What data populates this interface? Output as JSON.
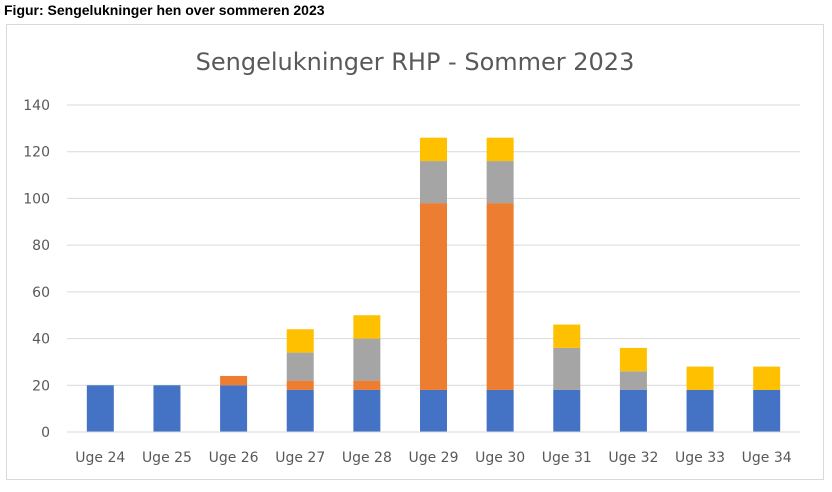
{
  "caption": "Figur: Sengelukninger hen over sommeren 2023",
  "chart_data": {
    "type": "bar",
    "stacked": true,
    "title": "Sengelukninger RHP - Sommer 2023",
    "xlabel": "",
    "ylabel": "",
    "ylim": [
      0,
      140
    ],
    "yticks": [
      0,
      20,
      40,
      60,
      80,
      100,
      120,
      140
    ],
    "grid": true,
    "categories": [
      "Uge 24",
      "Uge 25",
      "Uge 26",
      "Uge 27",
      "Uge 28",
      "Uge 29",
      "Uge 30",
      "Uge 31",
      "Uge 32",
      "Uge 33",
      "Uge 34"
    ],
    "series": [
      {
        "color": "#4472C4",
        "values": [
          20,
          20,
          20,
          18,
          18,
          18,
          18,
          18,
          18,
          18,
          18
        ]
      },
      {
        "color": "#ED7D31",
        "values": [
          0,
          0,
          4,
          4,
          4,
          80,
          80,
          0,
          0,
          0,
          0
        ]
      },
      {
        "color": "#A5A5A5",
        "values": [
          0,
          0,
          0,
          12,
          18,
          18,
          18,
          18,
          8,
          0,
          0
        ]
      },
      {
        "color": "#FFC000",
        "values": [
          0,
          0,
          0,
          10,
          10,
          10,
          10,
          10,
          10,
          10,
          10
        ]
      }
    ]
  }
}
